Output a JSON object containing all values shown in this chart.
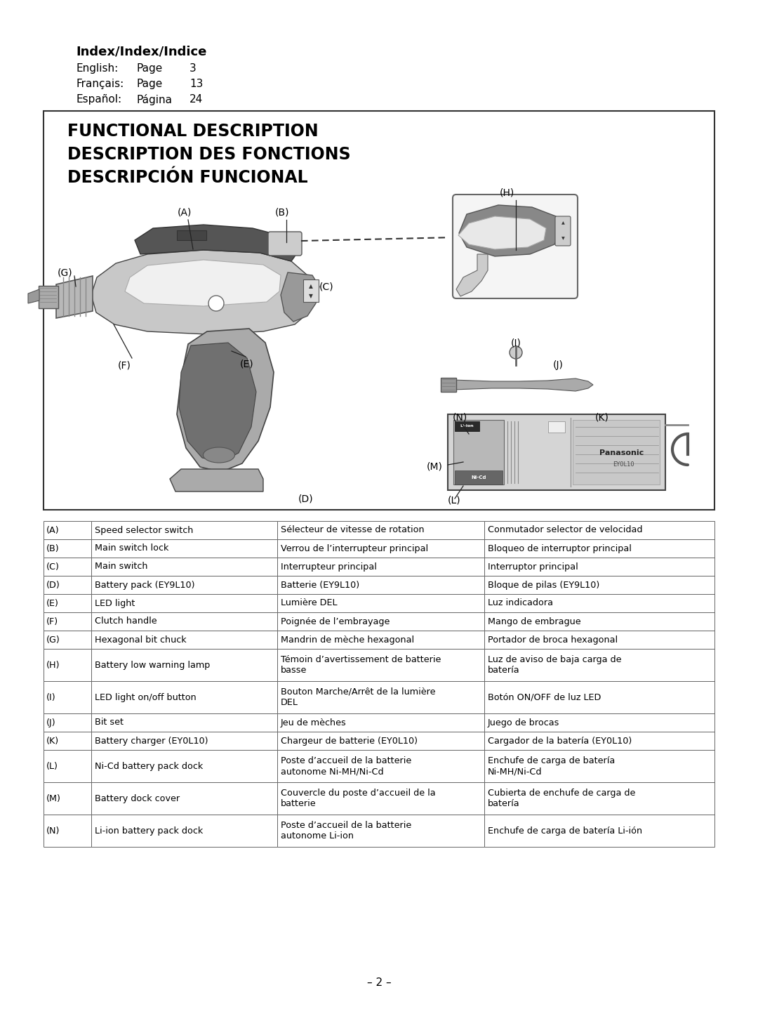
{
  "bg_color": "#ffffff",
  "index_title": "Index/Index/Indice",
  "index_rows": [
    [
      "English:",
      "Page",
      "3"
    ],
    [
      "Français:",
      "Page",
      "13"
    ],
    [
      "Español:",
      "Página",
      "24"
    ]
  ],
  "box_title_lines": [
    "FUNCTIONAL DESCRIPTION",
    "DESCRIPTION DES FONCTIONS",
    "DESCRIPCIÓN FUNCIONAL"
  ],
  "table_rows": [
    [
      "(A)",
      "Speed selector switch",
      "Sélecteur de vitesse de rotation",
      "Conmutador selector de velocidad"
    ],
    [
      "(B)",
      "Main switch lock",
      "Verrou de l’interrupteur principal",
      "Bloqueo de interruptor principal"
    ],
    [
      "(C)",
      "Main switch",
      "Interrupteur principal",
      "Interruptor principal"
    ],
    [
      "(D)",
      "Battery pack (EY9L10)",
      "Batterie (EY9L10)",
      "Bloque de pilas (EY9L10)"
    ],
    [
      "(E)",
      "LED light",
      "Lumière DEL",
      "Luz indicadora"
    ],
    [
      "(F)",
      "Clutch handle",
      "Poignée de l’embrayage",
      "Mango de embrague"
    ],
    [
      "(G)",
      "Hexagonal bit chuck",
      "Mandrin de mèche hexagonal",
      "Portador de broca hexagonal"
    ],
    [
      "(H)",
      "Battery low warning lamp",
      "Témoin d’avertissement de batterie\nbasse",
      "Luz de aviso de baja carga de\nbatería"
    ],
    [
      "(I)",
      "LED light on/off button",
      "Bouton Marche/Arrêt de la lumière\nDEL",
      "Botón ON/OFF de luz LED"
    ],
    [
      "(J)",
      "Bit set",
      "Jeu de mèches",
      "Juego de brocas"
    ],
    [
      "(K)",
      "Battery charger (EY0L10)",
      "Chargeur de batterie (EY0L10)",
      "Cargador de la batería (EY0L10)"
    ],
    [
      "(L)",
      "Ni-Cd battery pack dock",
      "Poste d’accueil de la batterie\nautonome Ni-MH/Ni-Cd",
      "Enchufe de carga de batería\nNi-MH/Ni-Cd"
    ],
    [
      "(M)",
      "Battery dock cover",
      "Couvercle du poste d’accueil de la\nbatterie",
      "Cubierta de enchufe de carga de\nbatería"
    ],
    [
      "(N)",
      "Li-ion battery pack dock",
      "Poste d’accueil de la batterie\nautonome Li-ion",
      "Enchufe de carga de batería Li-ión"
    ]
  ],
  "page_number": "– 2 –"
}
